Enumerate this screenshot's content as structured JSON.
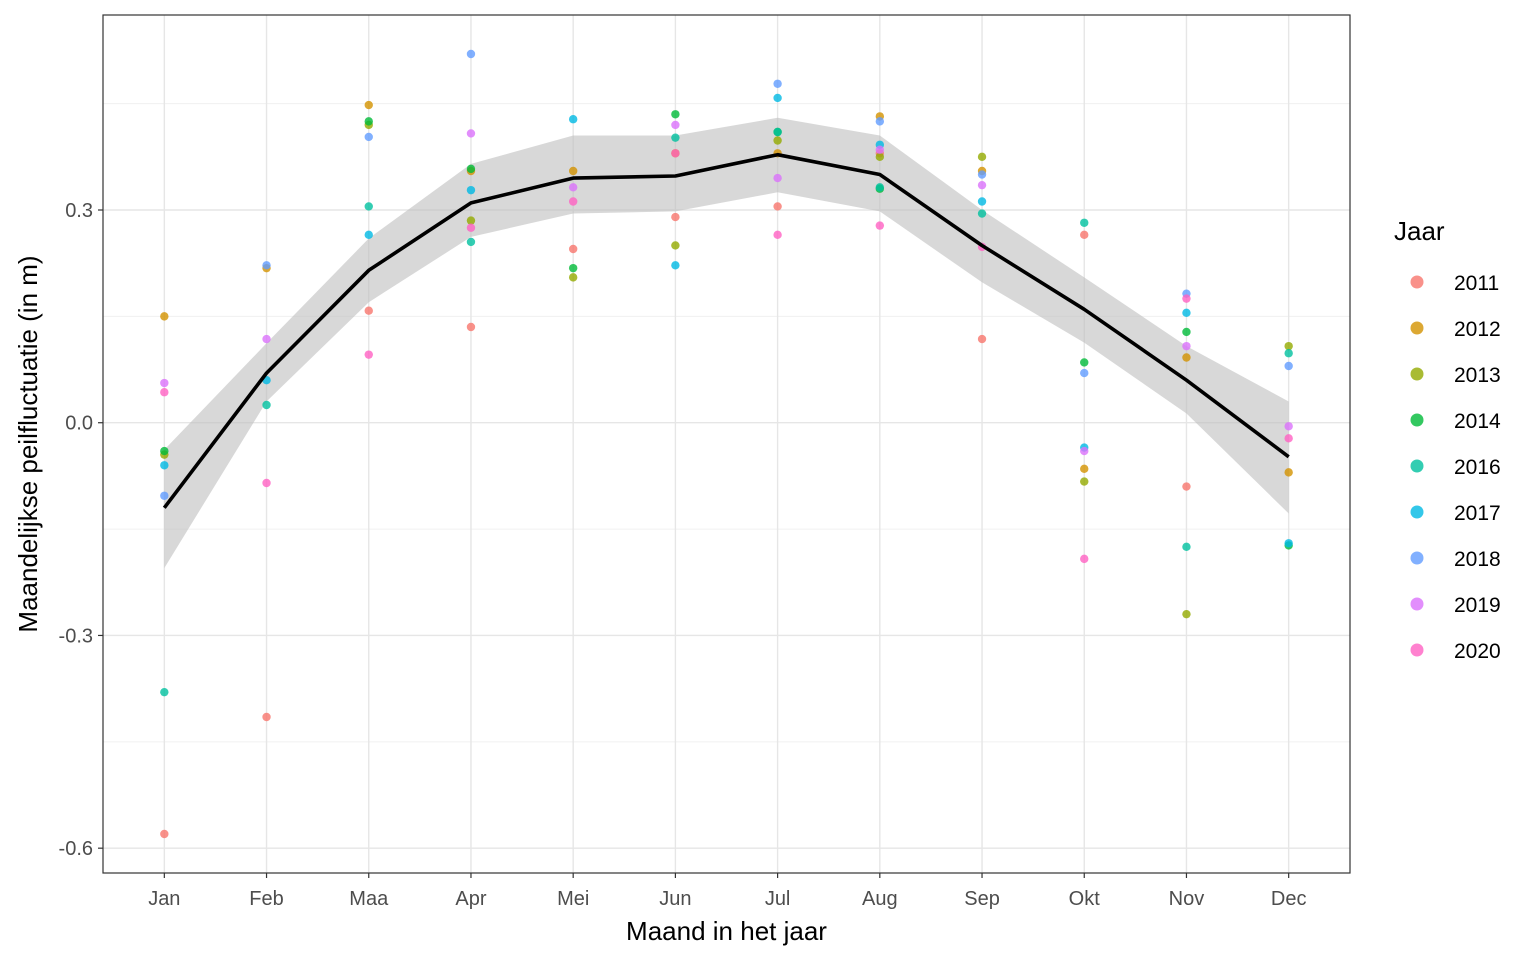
{
  "chart_data": {
    "type": "scatter",
    "xlabel": "Maand in het jaar",
    "ylabel": "Maandelijkse peilfluctuatie (in m)",
    "categories": [
      "Jan",
      "Feb",
      "Maa",
      "Apr",
      "Mei",
      "Jun",
      "Jul",
      "Aug",
      "Sep",
      "Okt",
      "Nov",
      "Dec"
    ],
    "ylim": [
      -0.635,
      0.575
    ],
    "yticks": [
      -0.6,
      -0.3,
      0.0,
      0.3
    ],
    "ytick_labels": [
      "-0.6",
      "-0.3",
      "0.0",
      "0.3"
    ],
    "grid": true,
    "legend": {
      "title": "Jaar",
      "position": "right"
    },
    "series": [
      {
        "name": "2011",
        "color": "#F8766D",
        "values": [
          -0.58,
          -0.415,
          0.158,
          0.135,
          0.245,
          0.29,
          0.305,
          0.38,
          0.118,
          0.265,
          -0.09,
          null
        ]
      },
      {
        "name": "2012",
        "color": "#D39200",
        "values": [
          0.15,
          0.218,
          0.448,
          0.355,
          0.355,
          0.38,
          0.38,
          0.432,
          0.355,
          -0.065,
          0.092,
          -0.07
        ]
      },
      {
        "name": "2013",
        "color": "#93AA00",
        "values": [
          -0.045,
          null,
          0.42,
          0.285,
          0.205,
          0.25,
          0.398,
          0.375,
          0.375,
          -0.083,
          -0.27,
          0.108
        ]
      },
      {
        "name": "2014",
        "color": "#00BA38",
        "values": [
          -0.04,
          null,
          0.425,
          0.358,
          0.218,
          0.435,
          0.41,
          0.33,
          null,
          0.085,
          0.128,
          -0.173
        ]
      },
      {
        "name": "2016",
        "color": "#00C19F",
        "values": [
          -0.38,
          0.025,
          0.305,
          0.255,
          null,
          0.402,
          0.41,
          0.332,
          0.295,
          0.282,
          -0.175,
          0.098
        ]
      },
      {
        "name": "2017",
        "color": "#00B9E3",
        "values": [
          -0.06,
          0.06,
          0.265,
          0.328,
          0.428,
          0.222,
          0.458,
          0.392,
          0.312,
          -0.035,
          0.155,
          -0.17
        ]
      },
      {
        "name": "2018",
        "color": "#619CFF",
        "values": [
          -0.103,
          0.222,
          0.403,
          0.52,
          null,
          null,
          0.478,
          0.425,
          0.35,
          0.07,
          0.182,
          0.08
        ]
      },
      {
        "name": "2019",
        "color": "#DB72FB",
        "values": [
          0.056,
          0.118,
          null,
          0.408,
          0.332,
          0.42,
          0.345,
          0.385,
          0.335,
          -0.04,
          0.108,
          -0.005
        ]
      },
      {
        "name": "2020",
        "color": "#FF61C3",
        "values": [
          0.043,
          -0.085,
          0.096,
          0.275,
          0.312,
          0.38,
          0.265,
          0.278,
          0.248,
          -0.192,
          0.175,
          -0.022
        ]
      }
    ],
    "trend": {
      "color": "#000000",
      "mean": [
        -0.12,
        0.07,
        0.215,
        0.31,
        0.345,
        0.348,
        0.378,
        0.35,
        0.25,
        0.16,
        0.06,
        -0.048
      ],
      "lower": [
        -0.205,
        0.03,
        0.17,
        0.262,
        0.295,
        0.298,
        0.325,
        0.298,
        0.198,
        0.113,
        0.013,
        -0.128
      ],
      "upper": [
        -0.038,
        0.112,
        0.26,
        0.365,
        0.405,
        0.405,
        0.43,
        0.405,
        0.3,
        0.205,
        0.108,
        0.03
      ],
      "band_color": "#BEBEBE"
    }
  }
}
